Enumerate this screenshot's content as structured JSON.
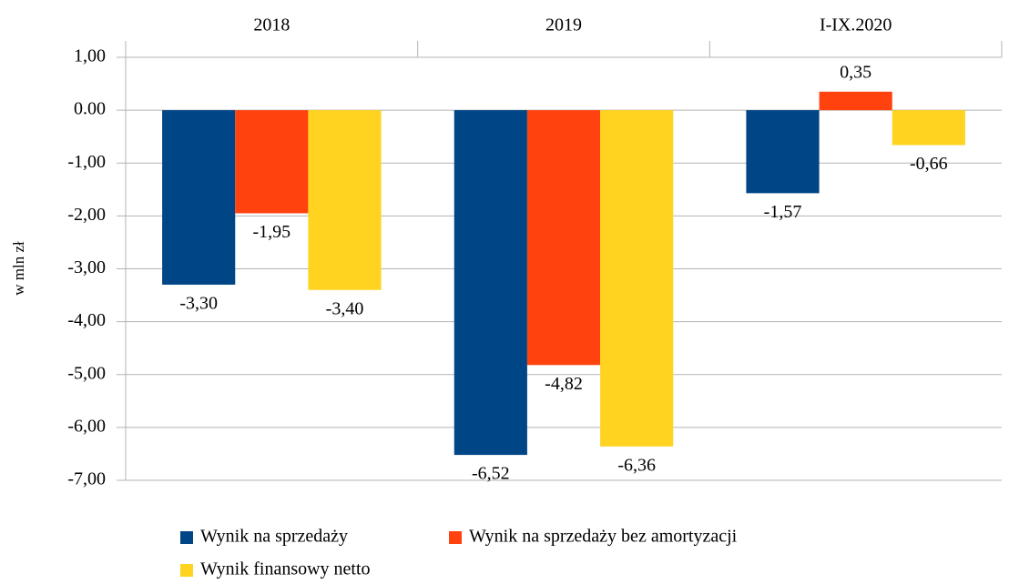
{
  "chart_data": {
    "type": "bar",
    "categories": [
      "2018",
      "2019",
      "I-IX.2020"
    ],
    "y_label": "w mln zł",
    "series": [
      {
        "name": "Wynik na sprzedaży",
        "color": "#004586",
        "values": [
          -3.3,
          -6.52,
          -1.57
        ],
        "value_labels": [
          "-3,30",
          "-6,52",
          "-1,57"
        ]
      },
      {
        "name": "Wynik na sprzedaży bez amortyzacji",
        "color": "#ff420e",
        "values": [
          -1.95,
          -4.82,
          0.35
        ],
        "value_labels": [
          "-1,95",
          "-4,82",
          "0,35"
        ]
      },
      {
        "name": "Wynik finansowy netto",
        "color": "#ffd320",
        "values": [
          -3.4,
          -6.36,
          -0.66
        ],
        "value_labels": [
          "-3,40",
          "-6,36",
          "-0,66"
        ]
      }
    ],
    "ylim": [
      -7,
      1
    ],
    "yticks": [
      {
        "value": 1,
        "label": "1,00"
      },
      {
        "value": 0,
        "label": "0.00"
      },
      {
        "value": -1,
        "label": "-1,00"
      },
      {
        "value": -2,
        "label": "-2,00"
      },
      {
        "value": -3,
        "label": "-3,00"
      },
      {
        "value": -4,
        "label": "-4,00"
      },
      {
        "value": -5,
        "label": "-5,00"
      },
      {
        "value": -6,
        "label": "-6,00"
      },
      {
        "value": -7,
        "label": "-7,00"
      }
    ],
    "grid": true,
    "legend": "bottom"
  }
}
